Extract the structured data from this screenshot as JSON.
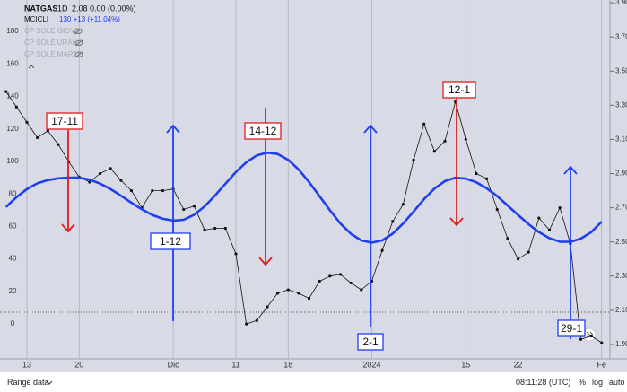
{
  "chart_data": {
    "type": "line",
    "categories": [
      null,
      null,
      "13",
      null,
      null,
      null,
      null,
      "20",
      null,
      null,
      null,
      null,
      null,
      null,
      null,
      null,
      "Dic",
      null,
      null,
      null,
      null,
      null,
      "11",
      null,
      null,
      null,
      null,
      "18",
      null,
      null,
      null,
      null,
      null,
      null,
      null,
      "2024",
      null,
      null,
      null,
      null,
      null,
      null,
      null,
      null,
      "15",
      null,
      null,
      null,
      null,
      "22",
      null,
      null,
      null,
      null,
      null,
      null,
      null,
      "Fe"
    ],
    "series": [
      {
        "name": "NATGAS",
        "color": "#111111",
        "axis": "y2",
        "values": [
          3.38,
          3.29,
          3.2,
          3.11,
          3.15,
          3.07,
          2.97,
          2.88,
          2.85,
          2.9,
          2.93,
          2.86,
          2.8,
          2.7,
          2.8,
          2.8,
          2.81,
          2.69,
          2.71,
          2.57,
          2.58,
          2.58,
          2.43,
          2.02,
          2.04,
          2.12,
          2.2,
          2.22,
          2.2,
          2.17,
          2.27,
          2.3,
          2.31,
          2.26,
          2.22,
          2.27,
          2.45,
          2.62,
          2.72,
          2.98,
          3.19,
          3.03,
          3.09,
          3.32,
          3.1,
          2.9,
          2.87,
          2.69,
          2.52,
          2.4,
          2.44,
          2.64,
          2.57,
          2.7,
          2.49,
          1.93,
          1.95,
          1.91
        ]
      },
      {
        "name": "MCICLI",
        "color": "#1f3ff0",
        "values": [
          72,
          78,
          83,
          86.5,
          88.5,
          89.6,
          90,
          90,
          88.8,
          86.4,
          83,
          78.9,
          74.6,
          70.5,
          67.1,
          64.7,
          63.6,
          64.1,
          67.2,
          72.3,
          79,
          86.3,
          93.5,
          99.5,
          103.7,
          105.4,
          104.6,
          101,
          95.1,
          87.3,
          78.6,
          69.9,
          61.8,
          55.5,
          51.4,
          50,
          51.4,
          55.6,
          61.8,
          69.2,
          76.8,
          83.3,
          87.9,
          90,
          89.4,
          87.2,
          83.5,
          78.6,
          72.9,
          67,
          61.4,
          56.5,
          52.8,
          50.6,
          50.5,
          52.5,
          56.5,
          63
        ]
      }
    ],
    "ylim": [
      -21.5,
      199.4
    ],
    "yticks": [
      0,
      20,
      40,
      60,
      80,
      100,
      120,
      140,
      160,
      180
    ],
    "y2lim": [
      1.816,
      3.916
    ],
    "y2ticks": [
      {
        "value": 1.9,
        "label": "1.90"
      },
      {
        "value": 2.1,
        "label": "2.10"
      },
      {
        "value": 2.3,
        "label": "2.30"
      },
      {
        "value": 2.5,
        "label": "2.50"
      },
      {
        "value": 2.7,
        "label": "2.70"
      },
      {
        "value": 2.9,
        "label": "2.90"
      },
      {
        "value": 3.1,
        "label": "3.10"
      },
      {
        "value": 3.3,
        "label": "3.30"
      },
      {
        "value": 3.5,
        "label": "3.50"
      },
      {
        "value": 3.7,
        "label": "3.70"
      },
      {
        "value": 3.9,
        "label": "3.90"
      }
    ],
    "grid": true,
    "annotations": [
      {
        "label": "17-11",
        "color": "#e01b1b"
      },
      {
        "label": "14-12",
        "color": "#e01b1b"
      },
      {
        "label": "12-1",
        "color": "#e01b1b"
      },
      {
        "label": "1-12",
        "color": "#1f3ff0"
      },
      {
        "label": "2-1",
        "color": "#1f3ff0"
      },
      {
        "label": "29-1",
        "color": "#1f3ff0"
      }
    ]
  },
  "legend": {
    "interval": "1D",
    "quote": "2.08 0.00 (0.00%)",
    "indicator_quote": "130 +13 (+11.04%)",
    "layers": [
      "CP SOLE GIOVE",
      "CP SOLE URANO",
      "CP SOLE MARTE"
    ]
  },
  "status_bar": {
    "range": "Range data",
    "time": "08:11:28 (UTC)",
    "options": [
      "%",
      "log",
      "auto"
    ]
  }
}
